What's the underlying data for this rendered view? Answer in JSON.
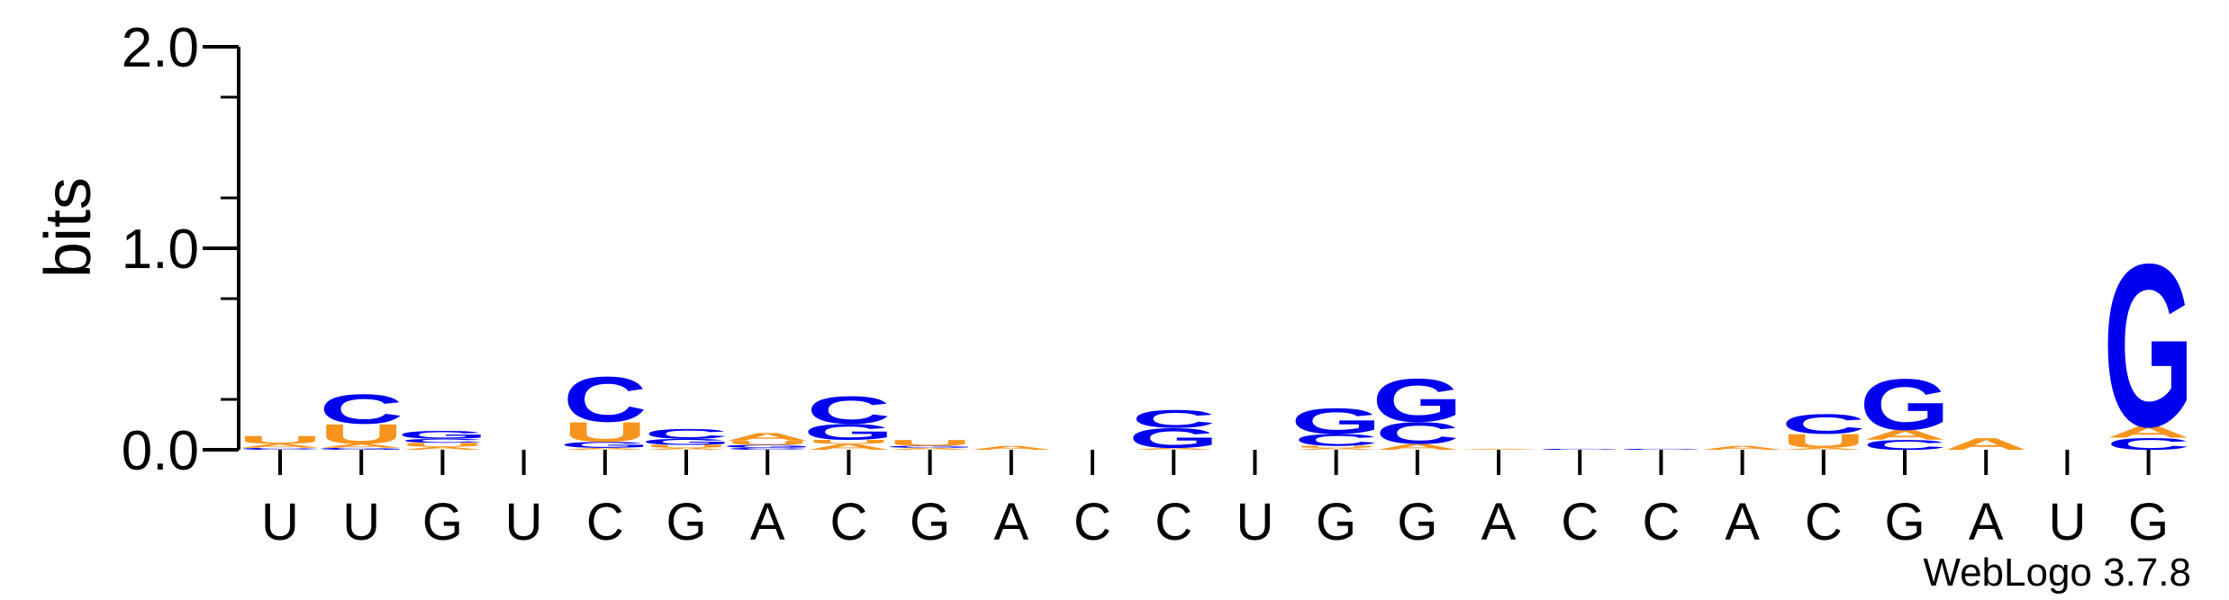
{
  "chart_data": {
    "type": "sequence-logo",
    "ylabel": "bits",
    "ylim": [
      0,
      2.0
    ],
    "yticks": [
      "0.0",
      "1.0",
      "2.0"
    ],
    "credit": "WebLogo 3.7.8",
    "colors": {
      "A": "#f7941d",
      "U": "#f7941d",
      "G": "#0000ee",
      "C": "#0000ee"
    },
    "positions": [
      {
        "label": "U",
        "stack": [
          [
            "C",
            0.01
          ],
          [
            "A",
            0.02
          ],
          [
            "U",
            0.04
          ]
        ]
      },
      {
        "label": "U",
        "stack": [
          [
            "G",
            0.01
          ],
          [
            "A",
            0.02
          ],
          [
            "U",
            0.1
          ],
          [
            "C",
            0.15
          ]
        ]
      },
      {
        "label": "G",
        "stack": [
          [
            "A",
            0.015
          ],
          [
            "U",
            0.02
          ],
          [
            "C",
            0.02
          ],
          [
            "G",
            0.04
          ]
        ]
      },
      {
        "label": "U",
        "stack": []
      },
      {
        "label": "C",
        "stack": [
          [
            "A",
            0.01
          ],
          [
            "G",
            0.03
          ],
          [
            "U",
            0.1
          ],
          [
            "C",
            0.23
          ]
        ]
      },
      {
        "label": "G",
        "stack": [
          [
            "A",
            0.01
          ],
          [
            "U",
            0.015
          ],
          [
            "G",
            0.03
          ],
          [
            "C",
            0.05
          ]
        ]
      },
      {
        "label": "A",
        "stack": [
          [
            "C",
            0.01
          ],
          [
            "G",
            0.015
          ],
          [
            "U",
            0.02
          ],
          [
            "A",
            0.04
          ]
        ]
      },
      {
        "label": "C",
        "stack": [
          [
            "A",
            0.03
          ],
          [
            "U",
            0.02
          ],
          [
            "G",
            0.08
          ],
          [
            "C",
            0.14
          ]
        ]
      },
      {
        "label": "G",
        "stack": [
          [
            "A",
            0.01
          ],
          [
            "G",
            0.01
          ],
          [
            "U",
            0.03
          ]
        ]
      },
      {
        "label": "A",
        "stack": [
          [
            "A",
            0.02
          ]
        ]
      },
      {
        "label": "C",
        "stack": []
      },
      {
        "label": "C",
        "stack": [
          [
            "A",
            0.01
          ],
          [
            "G",
            0.1
          ],
          [
            "C",
            0.09
          ]
        ]
      },
      {
        "label": "U",
        "stack": []
      },
      {
        "label": "G",
        "stack": [
          [
            "A",
            0.01
          ],
          [
            "U",
            0.01
          ],
          [
            "C",
            0.06
          ],
          [
            "G",
            0.13
          ]
        ]
      },
      {
        "label": "G",
        "stack": [
          [
            "A",
            0.03
          ],
          [
            "C",
            0.11
          ],
          [
            "G",
            0.22
          ]
        ]
      },
      {
        "label": "A",
        "stack": [
          [
            "A",
            0.005
          ]
        ]
      },
      {
        "label": "C",
        "stack": [
          [
            "C",
            0.005
          ]
        ]
      },
      {
        "label": "C",
        "stack": [
          [
            "C",
            0.005
          ]
        ]
      },
      {
        "label": "A",
        "stack": [
          [
            "A",
            0.02
          ]
        ]
      },
      {
        "label": "C",
        "stack": [
          [
            "A",
            0.01
          ],
          [
            "U",
            0.07
          ],
          [
            "C",
            0.1
          ]
        ]
      },
      {
        "label": "G",
        "stack": [
          [
            "C",
            0.05
          ],
          [
            "A",
            0.05
          ],
          [
            "G",
            0.26
          ]
        ]
      },
      {
        "label": "A",
        "stack": [
          [
            "A",
            0.06
          ]
        ]
      },
      {
        "label": "U",
        "stack": []
      },
      {
        "label": "G",
        "stack": [
          [
            "C",
            0.06
          ],
          [
            "A",
            0.06
          ],
          [
            "G",
            0.83
          ]
        ]
      }
    ]
  }
}
